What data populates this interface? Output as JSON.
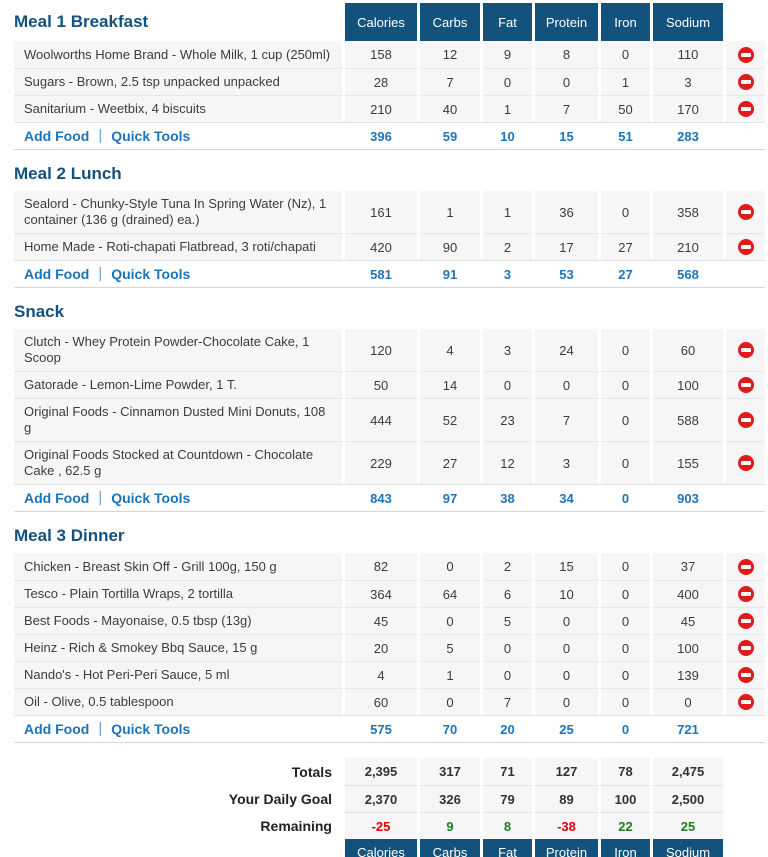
{
  "table": {
    "columns": [
      "Calories",
      "Carbs",
      "Fat",
      "Protein",
      "Iron",
      "Sodium"
    ]
  },
  "links": {
    "add_food": "Add Food",
    "quick_tools": "Quick Tools",
    "separator": "|"
  },
  "sections": [
    {
      "title": "Meal 1 Breakfast",
      "items": [
        {
          "name": "Woolworths Home Brand - Whole Milk, 1 cup (250ml)",
          "values": [
            "158",
            "12",
            "9",
            "8",
            "0",
            "110"
          ]
        },
        {
          "name": "Sugars - Brown, 2.5 tsp unpacked unpacked",
          "values": [
            "28",
            "7",
            "0",
            "0",
            "1",
            "3"
          ]
        },
        {
          "name": "Sanitarium - Weetbix, 4 biscuits",
          "values": [
            "210",
            "40",
            "1",
            "7",
            "50",
            "170"
          ]
        }
      ],
      "totals": [
        "396",
        "59",
        "10",
        "15",
        "51",
        "283"
      ]
    },
    {
      "title": "Meal 2 Lunch",
      "items": [
        {
          "name": "Sealord - Chunky-Style Tuna In Spring Water (Nz), 1 container (136 g (drained) ea.)",
          "values": [
            "161",
            "1",
            "1",
            "36",
            "0",
            "358"
          ]
        },
        {
          "name": "Home Made - Roti-chapati Flatbread, 3 roti/chapati",
          "values": [
            "420",
            "90",
            "2",
            "17",
            "27",
            "210"
          ]
        }
      ],
      "totals": [
        "581",
        "91",
        "3",
        "53",
        "27",
        "568"
      ]
    },
    {
      "title": "Snack",
      "items": [
        {
          "name": "Clutch - Whey Protein Powder-Chocolate Cake, 1 Scoop",
          "values": [
            "120",
            "4",
            "3",
            "24",
            "0",
            "60"
          ]
        },
        {
          "name": "Gatorade - Lemon-Lime Powder, 1 T.",
          "values": [
            "50",
            "14",
            "0",
            "0",
            "0",
            "100"
          ]
        },
        {
          "name": "Original Foods - Cinnamon Dusted Mini Donuts, 108 g",
          "values": [
            "444",
            "52",
            "23",
            "7",
            "0",
            "588"
          ]
        },
        {
          "name": "Original Foods Stocked at Countdown - Chocolate Cake , 62.5 g",
          "values": [
            "229",
            "27",
            "12",
            "3",
            "0",
            "155"
          ]
        }
      ],
      "totals": [
        "843",
        "97",
        "38",
        "34",
        "0",
        "903"
      ]
    },
    {
      "title": "Meal 3 Dinner",
      "items": [
        {
          "name": "Chicken - Breast Skin Off - Grill 100g, 150 g",
          "values": [
            "82",
            "0",
            "2",
            "15",
            "0",
            "37"
          ]
        },
        {
          "name": "Tesco - Plain Tortilla Wraps, 2 tortilla",
          "values": [
            "364",
            "64",
            "6",
            "10",
            "0",
            "400"
          ]
        },
        {
          "name": "Best Foods - Mayonaise, 0.5 tbsp (13g)",
          "values": [
            "45",
            "0",
            "5",
            "0",
            "0",
            "45"
          ]
        },
        {
          "name": "Heinz - Rich & Smokey Bbq Sauce, 15 g",
          "values": [
            "20",
            "5",
            "0",
            "0",
            "0",
            "100"
          ]
        },
        {
          "name": "Nando's - Hot Peri-Peri Sauce, 5 ml",
          "values": [
            "4",
            "1",
            "0",
            "0",
            "0",
            "139"
          ]
        },
        {
          "name": "Oil - Olive, 0.5 tablespoon",
          "values": [
            "60",
            "0",
            "7",
            "0",
            "0",
            "0"
          ]
        }
      ],
      "totals": [
        "575",
        "70",
        "20",
        "25",
        "0",
        "721"
      ]
    }
  ],
  "summary": {
    "totals_label": "Totals",
    "totals": [
      "2,395",
      "317",
      "71",
      "127",
      "78",
      "2,475"
    ],
    "goal_label": "Your Daily Goal",
    "goal": [
      "2,370",
      "326",
      "79",
      "89",
      "100",
      "2,500"
    ],
    "remaining_label": "Remaining",
    "remaining": [
      {
        "value": "-25",
        "color": "#dd0000"
      },
      {
        "value": "9",
        "color": "#1e7d1e"
      },
      {
        "value": "8",
        "color": "#1e7d1e"
      },
      {
        "value": "-38",
        "color": "#dd0000"
      },
      {
        "value": "22",
        "color": "#1e7d1e"
      },
      {
        "value": "25",
        "color": "#1e7d1e"
      }
    ]
  },
  "colors": {
    "header_bg": "#14527e",
    "section_title": "#14527e",
    "link_blue": "#1d74bb",
    "row_bg": "#f6f6f6",
    "negative": "#dd0000",
    "positive": "#1e7d1e",
    "delete_red": "#e01b1b"
  }
}
